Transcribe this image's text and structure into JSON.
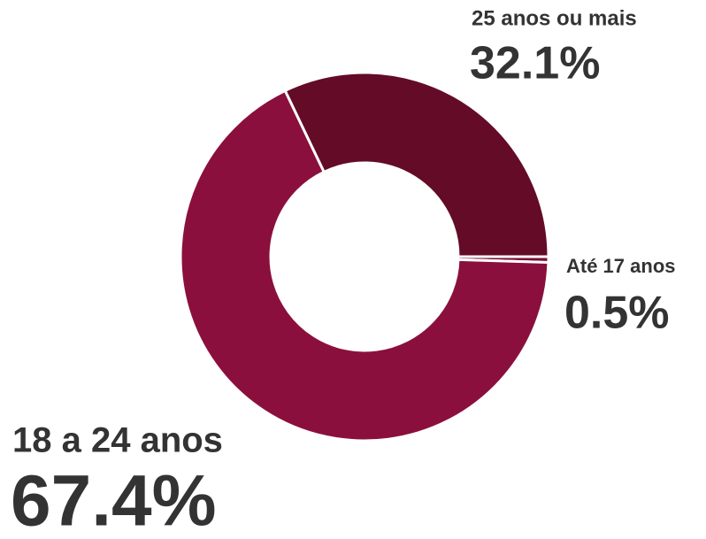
{
  "chart_data": {
    "type": "donut",
    "categories": [
      "Até 17 anos",
      "18 a 24 anos",
      "25 anos ou mais"
    ],
    "values": [
      0.5,
      67.4,
      32.1
    ],
    "value_labels": [
      "0.5%",
      "67.4%",
      "32.1%"
    ],
    "colors": [
      "#7d0e35",
      "#8b0f3c",
      "#630b27"
    ]
  }
}
